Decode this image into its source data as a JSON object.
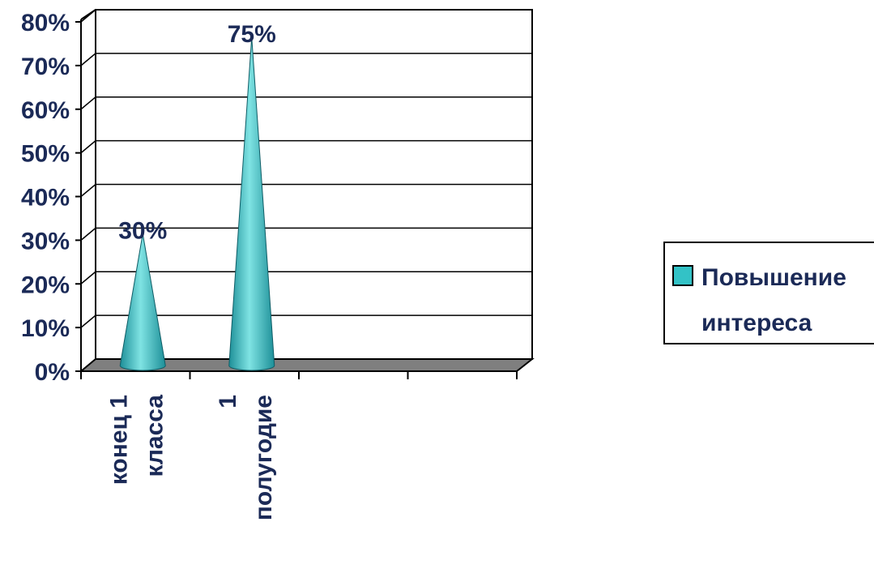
{
  "chart_data": {
    "type": "bar",
    "style": "3d-cone",
    "categories": [
      [
        "конец 1",
        "класса"
      ],
      [
        "1",
        "полугодие"
      ],
      [],
      []
    ],
    "series": [
      {
        "name": "Повышение интереса",
        "legend_lines": [
          "Повышение",
          "интереса"
        ],
        "values": [
          30,
          75,
          null,
          null
        ],
        "data_labels": [
          "30%",
          "75%",
          "",
          ""
        ]
      }
    ],
    "ylim": [
      0,
      80
    ],
    "yticks": [
      "0%",
      "10%",
      "20%",
      "30%",
      "40%",
      "50%",
      "60%",
      "70%",
      "80%"
    ],
    "grid": true,
    "legend_position": "right",
    "colors": {
      "cone": "#33c2c6",
      "cone_light": "#7fe3e3",
      "cone_dark": "#1d8f98",
      "floor": "#7f7f7f",
      "text": "#1b2a57",
      "lines": "#000000"
    }
  }
}
